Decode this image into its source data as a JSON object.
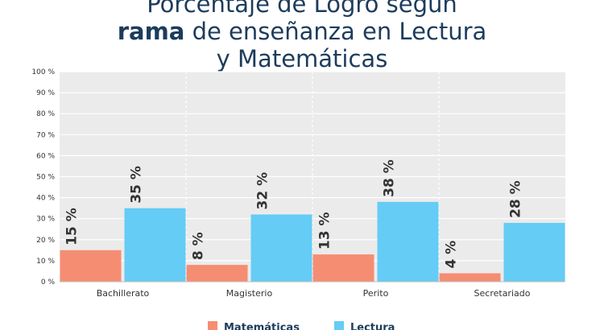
{
  "title": {
    "line1": "Porcentaje de Logro según",
    "line2_bold": "rama",
    "line2_rest": " de enseñanza en Lectura",
    "line3": "y Matemáticas"
  },
  "chart_data": {
    "type": "bar",
    "categories": [
      "Bachillerato",
      "Magisterio",
      "Perito",
      "Secretariado"
    ],
    "series": [
      {
        "name": "Matemáticas",
        "values": [
          15,
          8,
          13,
          4
        ],
        "color": "#f58d72"
      },
      {
        "name": "Lectura",
        "values": [
          35,
          32,
          38,
          28
        ],
        "color": "#64ccf5"
      }
    ],
    "data_labels": {
      "Matemáticas": [
        "15 %",
        "8 %",
        "13 %",
        "4 %"
      ],
      "Lectura": [
        "35 %",
        "32 %",
        "38 %",
        "28 %"
      ]
    },
    "yticks": [
      "0 %",
      "10 %",
      "20 %",
      "30 %",
      "40 %",
      "50 %",
      "60 %",
      "70 %",
      "80 %",
      "90 %",
      "100 %"
    ],
    "ylim": [
      0,
      100
    ],
    "grid": true,
    "plot_background": "#ebebeb",
    "legend": {
      "position": "bottom",
      "labels": [
        "Matemáticas",
        "Lectura"
      ]
    }
  }
}
